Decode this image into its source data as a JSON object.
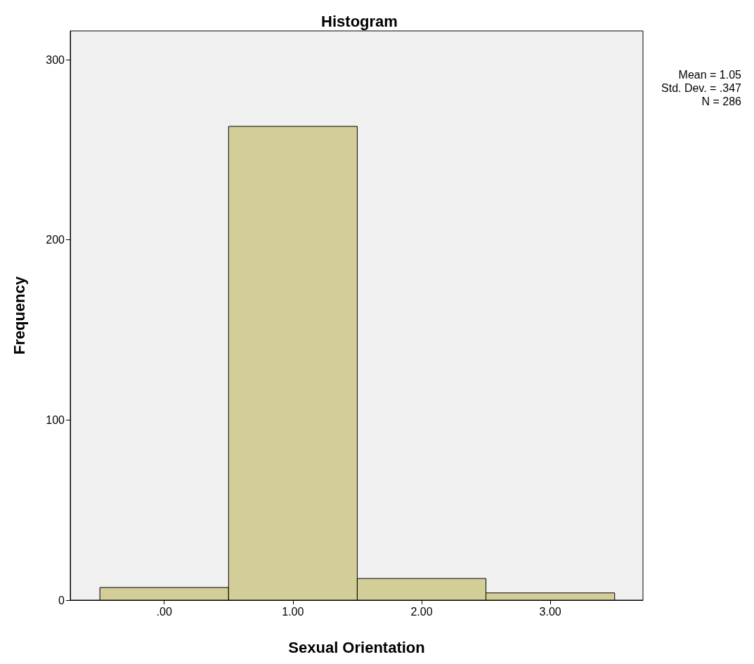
{
  "chart_data": {
    "type": "histogram",
    "title": "Histogram",
    "xlabel": "Sexual Orientation",
    "ylabel": "Frequency",
    "bins": [
      -0.5,
      0.5,
      1.5,
      2.5,
      3.5
    ],
    "values": [
      7,
      263,
      12,
      4
    ],
    "color": "#d3ce97",
    "xlim": [
      -0.73,
      3.72
    ],
    "xticks": [
      {
        "value": 0,
        "label": ".00"
      },
      {
        "value": 1,
        "label": "1.00"
      },
      {
        "value": 2,
        "label": "2.00"
      },
      {
        "value": 3,
        "label": "3.00"
      }
    ],
    "ylim": [
      0,
      316
    ],
    "yticks": [
      0,
      100,
      200,
      300
    ],
    "grid": false,
    "annotations": [
      "Mean = 1.05",
      "Std. Dev. = .347",
      "N = 286"
    ]
  }
}
